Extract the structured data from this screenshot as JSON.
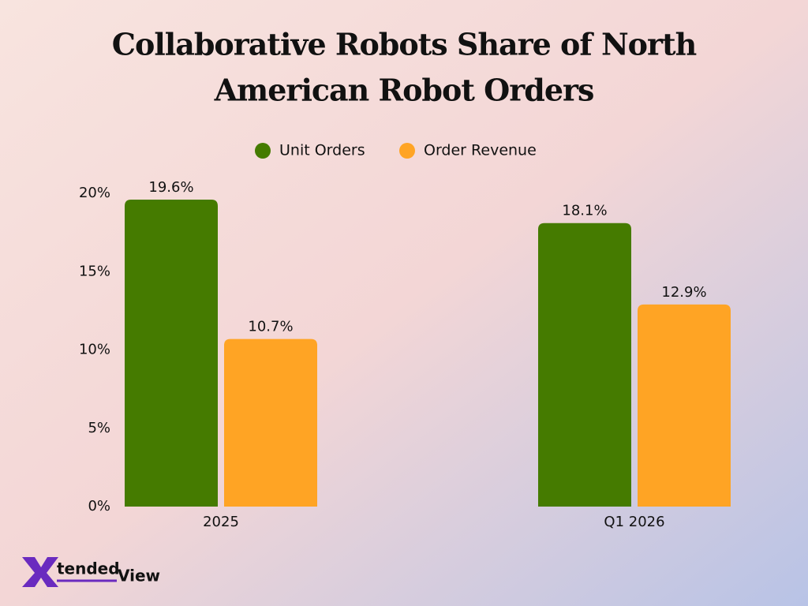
{
  "chart_data": {
    "type": "bar",
    "title": [
      "Collaborative Robots Share of North",
      "American Robot Orders"
    ],
    "categories": [
      "2025",
      "Q1 2026"
    ],
    "series": [
      {
        "name": "Unit Orders",
        "color": "#457b00",
        "values": [
          19.6,
          18.1
        ],
        "value_labels": [
          "19.6%",
          "18.1%"
        ]
      },
      {
        "name": "Order Revenue",
        "color": "#ffa424",
        "values": [
          10.7,
          12.9
        ],
        "value_labels": [
          "10.7%",
          "12.9%"
        ]
      }
    ],
    "ylim": [
      0,
      20
    ],
    "yticks": [
      {
        "value": 0,
        "label": "0%"
      },
      {
        "value": 5,
        "label": "5%"
      },
      {
        "value": 10,
        "label": "10%"
      },
      {
        "value": 15,
        "label": "15%"
      },
      {
        "value": 20,
        "label": "20%"
      }
    ],
    "grid": false,
    "legend": "top"
  },
  "logo": [
    "X",
    "tended",
    "View"
  ]
}
